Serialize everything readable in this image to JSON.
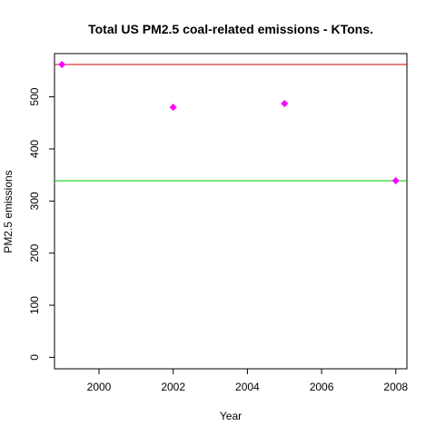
{
  "chart_data": {
    "type": "scatter",
    "title": "Total US PM2.5 coal-related emissions - KTons.",
    "xlabel": "Year",
    "ylabel": "PM2.5 emissions",
    "xlim": [
      1998.8,
      2008.3
    ],
    "ylim": [
      -22,
      583
    ],
    "x_ticks": [
      2000,
      2002,
      2004,
      2006,
      2008
    ],
    "y_ticks": [
      0,
      100,
      200,
      300,
      400,
      500
    ],
    "grid": false,
    "legend": "none",
    "series": [
      {
        "x": [
          1999,
          2002,
          2005,
          2008
        ],
        "y": [
          562,
          480,
          487,
          339
        ],
        "marker": "diamond",
        "color": "#ff00ff"
      }
    ],
    "reference_lines": [
      {
        "y": 562,
        "color": "#cc0000"
      },
      {
        "y": 339,
        "color": "#00cc00"
      }
    ]
  }
}
